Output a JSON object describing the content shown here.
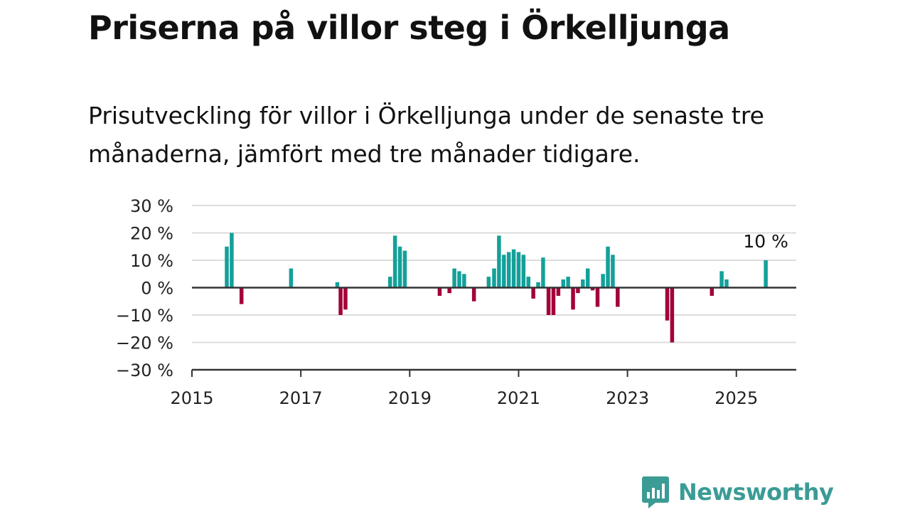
{
  "title": "Priserna på villor steg i Örkelljunga",
  "subtitle": "Prisutveckling för villor i Örkelljunga under de senaste tre månaderna, jämfört med tre månader tidigare.",
  "brand": {
    "name": "Newsworthy",
    "icon": "newsworthy-logo-icon",
    "color": "#3b9b95"
  },
  "chart_data": {
    "type": "bar",
    "title": "",
    "xlabel": "",
    "ylabel": "",
    "ylim": [
      -30,
      30
    ],
    "xlim": [
      2015.0,
      2026.1
    ],
    "y_ticks": [
      {
        "value": 30,
        "label": "30 %"
      },
      {
        "value": 20,
        "label": "20 %"
      },
      {
        "value": 10,
        "label": "10 %"
      },
      {
        "value": 0,
        "label": "0 %"
      },
      {
        "value": -10,
        "label": "−10 %"
      },
      {
        "value": -20,
        "label": "−20 %"
      },
      {
        "value": -30,
        "label": "−30 %"
      }
    ],
    "x_ticks": [
      {
        "value": 2015,
        "label": "2015"
      },
      {
        "value": 2017,
        "label": "2017"
      },
      {
        "value": 2019,
        "label": "2019"
      },
      {
        "value": 2021,
        "label": "2021"
      },
      {
        "value": 2023,
        "label": "2023"
      },
      {
        "value": 2025,
        "label": "2025"
      }
    ],
    "grid": true,
    "colors": {
      "positive": "#14a09a",
      "negative": "#a3003a"
    },
    "annotation": {
      "text": "10 %",
      "x": 2025.54,
      "y": 10
    },
    "series": [
      {
        "x": [
          2015.64,
          2015.73,
          2015.91,
          2016.82,
          2017.67,
          2017.73,
          2017.82,
          2018.64,
          2018.73,
          2018.82,
          2018.91,
          2019.55,
          2019.73,
          2019.82,
          2019.91,
          2020.0,
          2020.18,
          2020.45,
          2020.55,
          2020.64,
          2020.73,
          2020.82,
          2020.91,
          2021.0,
          2021.09,
          2021.18,
          2021.27,
          2021.36,
          2021.45,
          2021.55,
          2021.64,
          2021.73,
          2021.82,
          2021.91,
          2022.0,
          2022.09,
          2022.18,
          2022.27,
          2022.36,
          2022.45,
          2022.55,
          2022.64,
          2022.73,
          2022.82,
          2023.73,
          2023.82,
          2024.55,
          2024.73,
          2024.82,
          2025.54
        ],
        "values": [
          15,
          20,
          -6,
          7,
          2,
          -10,
          -8,
          4,
          19,
          15,
          13.5,
          -3,
          -2,
          7,
          6,
          5,
          -5,
          4,
          7,
          19,
          12,
          13,
          14,
          13,
          12,
          4,
          -4,
          2,
          11,
          -10,
          -10,
          -3,
          3,
          4,
          -8,
          -2,
          3,
          7,
          -1,
          -7,
          5,
          15,
          12,
          -7,
          -12,
          -20,
          -3,
          6,
          3,
          10
        ]
      }
    ]
  }
}
